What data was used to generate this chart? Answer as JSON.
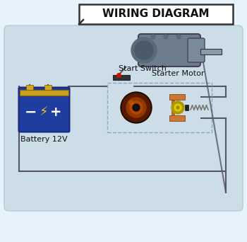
{
  "title": "WIRING DIAGRAM",
  "bg_top": "#f0f6ff",
  "bg_bottom": "#ddeef8",
  "circuit_bg": "#cce0f0",
  "circuit_edge": "#aac8de",
  "title_fontsize": 11,
  "battery_label": "Battery 12V",
  "switch_label": "Start Switch",
  "motor_label": "Starter Motor",
  "wire_color": "#555566",
  "dashed_color": "#88aabb"
}
